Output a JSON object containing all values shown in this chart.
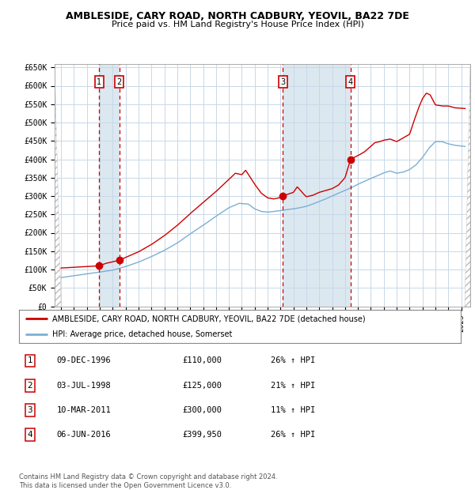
{
  "title": "AMBLESIDE, CARY ROAD, NORTH CADBURY, YEOVIL, BA22 7DE",
  "subtitle": "Price paid vs. HM Land Registry's House Price Index (HPI)",
  "ylim": [
    0,
    660000
  ],
  "yticks": [
    0,
    50000,
    100000,
    150000,
    200000,
    250000,
    300000,
    350000,
    400000,
    450000,
    500000,
    550000,
    600000,
    650000
  ],
  "ytick_labels": [
    "£0",
    "£50K",
    "£100K",
    "£150K",
    "£200K",
    "£250K",
    "£300K",
    "£350K",
    "£400K",
    "£450K",
    "£500K",
    "£550K",
    "£600K",
    "£650K"
  ],
  "xlim_start": 1993.5,
  "xlim_end": 2025.7,
  "hpi_color": "#7bafd4",
  "price_color": "#cc0000",
  "grid_color": "#c8d8e8",
  "background_color": "#ffffff",
  "hatched_region_color": "#dce8f0",
  "sale_points": [
    {
      "label": "1",
      "date_num": 1996.94,
      "price": 110000
    },
    {
      "label": "2",
      "date_num": 1998.5,
      "price": 125000
    },
    {
      "label": "3",
      "date_num": 2011.19,
      "price": 300000
    },
    {
      "label": "4",
      "date_num": 2016.43,
      "price": 399950
    }
  ],
  "sale_regions": [
    {
      "start": 1996.94,
      "end": 1998.5
    },
    {
      "start": 2011.19,
      "end": 2016.43
    }
  ],
  "legend_line1": "AMBLESIDE, CARY ROAD, NORTH CADBURY, YEOVIL, BA22 7DE (detached house)",
  "legend_line2": "HPI: Average price, detached house, Somerset",
  "table_data": [
    {
      "num": "1",
      "date": "09-DEC-1996",
      "price": "£110,000",
      "hpi": "26% ↑ HPI"
    },
    {
      "num": "2",
      "date": "03-JUL-1998",
      "price": "£125,000",
      "hpi": "21% ↑ HPI"
    },
    {
      "num": "3",
      "date": "10-MAR-2011",
      "price": "£300,000",
      "hpi": "11% ↑ HPI"
    },
    {
      "num": "4",
      "date": "06-JUN-2016",
      "price": "£399,950",
      "hpi": "26% ↑ HPI"
    }
  ],
  "footer": "Contains HM Land Registry data © Crown copyright and database right 2024.\nThis data is licensed under the Open Government Licence v3.0.",
  "hpi_anchors_x": [
    1994,
    1995,
    1996,
    1997,
    1998,
    1999,
    2000,
    2001,
    2002,
    2003,
    2004,
    2005,
    2006,
    2007,
    2007.8,
    2008.5,
    2009,
    2009.5,
    2010,
    2010.5,
    2011,
    2011.5,
    2012,
    2012.5,
    2013,
    2013.5,
    2014,
    2014.5,
    2015,
    2015.5,
    2016,
    2016.5,
    2017,
    2017.5,
    2018,
    2018.5,
    2019,
    2019.5,
    2020,
    2020.5,
    2021,
    2021.5,
    2022,
    2022.5,
    2023,
    2023.5,
    2024,
    2024.5,
    2025.3
  ],
  "hpi_anchors_y": [
    78000,
    83000,
    88000,
    93000,
    98000,
    108000,
    120000,
    135000,
    152000,
    172000,
    197000,
    220000,
    245000,
    268000,
    280000,
    278000,
    265000,
    258000,
    256000,
    258000,
    260000,
    263000,
    265000,
    268000,
    272000,
    278000,
    285000,
    292000,
    300000,
    308000,
    315000,
    323000,
    332000,
    340000,
    348000,
    355000,
    363000,
    368000,
    362000,
    365000,
    372000,
    385000,
    405000,
    430000,
    448000,
    448000,
    442000,
    438000,
    435000
  ],
  "price_anchors_x": [
    1994,
    1995,
    1996,
    1996.94,
    1997.5,
    1998.5,
    1999,
    2000,
    2001,
    2002,
    2003,
    2004,
    2005,
    2006,
    2007,
    2007.5,
    2008,
    2008.3,
    2009,
    2009.5,
    2010,
    2010.5,
    2011,
    2011.19,
    2011.5,
    2012,
    2012.3,
    2012.8,
    2013,
    2013.5,
    2014,
    2014.5,
    2015,
    2015.5,
    2016,
    2016.43,
    2017,
    2017.5,
    2018,
    2018.3,
    2018.7,
    2019,
    2019.5,
    2020,
    2020.5,
    2021,
    2021.3,
    2021.7,
    2022,
    2022.3,
    2022.6,
    2023,
    2023.5,
    2024,
    2024.5,
    2025.3
  ],
  "price_anchors_y": [
    104000,
    106000,
    108000,
    110000,
    117000,
    125000,
    133000,
    148000,
    168000,
    192000,
    220000,
    252000,
    282000,
    312000,
    345000,
    362000,
    358000,
    370000,
    332000,
    308000,
    295000,
    292000,
    296000,
    300000,
    304000,
    310000,
    325000,
    305000,
    298000,
    302000,
    310000,
    315000,
    320000,
    330000,
    350000,
    399950,
    410000,
    420000,
    435000,
    445000,
    448000,
    452000,
    455000,
    448000,
    458000,
    468000,
    500000,
    540000,
    565000,
    580000,
    575000,
    548000,
    545000,
    545000,
    540000,
    538000
  ]
}
